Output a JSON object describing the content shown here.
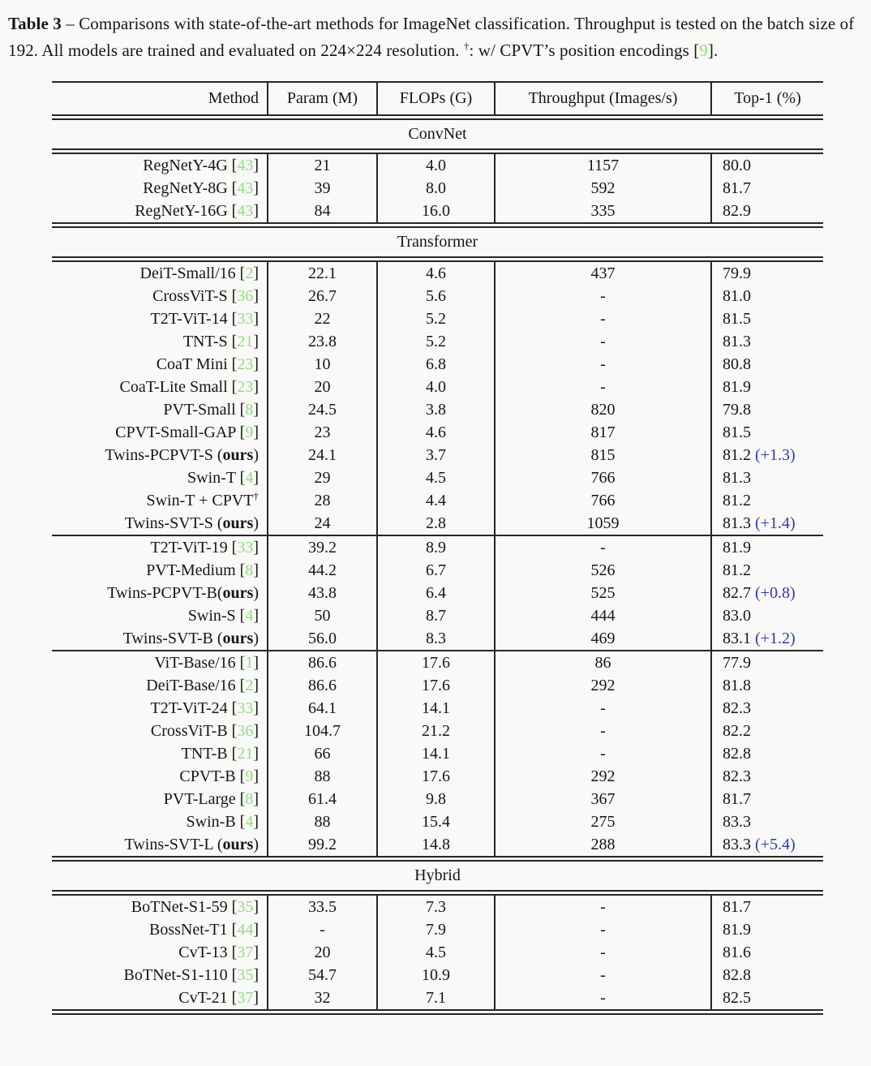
{
  "colors": {
    "background": "#f9f9f7",
    "ink": "#161616",
    "rule": "#262626",
    "citation_green": "#8fdf7d",
    "gain_blue": "#2a39c2"
  },
  "caption": {
    "label": "Table 3",
    "sep": " – ",
    "body1": "Comparisons with state-of-the-art methods for ImageNet classification. Throughput is tested on the batch size of 192. All models are trained and evaluated on 224×224 resolution. ",
    "dagger": "†",
    "body2": ": w/ CPVT’s position encodings [",
    "ref": "9",
    "body3": "]."
  },
  "table": {
    "columns": [
      "Method",
      "Param (M)",
      "FLOPs (G)",
      "Throughput (Images/s)",
      "Top-1 (%)"
    ],
    "sections": [
      {
        "label": "ConvNet",
        "groups": [
          [
            {
              "name": "RegNetY-4G",
              "ref": "43",
              "param": "21",
              "flops": "4.0",
              "tput": "1157",
              "top1": "80.0"
            },
            {
              "name": "RegNetY-8G",
              "ref": "43",
              "param": "39",
              "flops": "8.0",
              "tput": "592",
              "top1": "81.7"
            },
            {
              "name": "RegNetY-16G",
              "ref": "43",
              "param": "84",
              "flops": "16.0",
              "tput": "335",
              "top1": "82.9"
            }
          ]
        ]
      },
      {
        "label": "Transformer",
        "groups": [
          [
            {
              "name": "DeiT-Small/16",
              "ref": "2",
              "param": "22.1",
              "flops": "4.6",
              "tput": "437",
              "top1": "79.9"
            },
            {
              "name": "CrossViT-S",
              "ref": "36",
              "param": "26.7",
              "flops": "5.6",
              "tput": "-",
              "top1": "81.0"
            },
            {
              "name": "T2T-ViT-14",
              "ref": "33",
              "param": "22",
              "flops": "5.2",
              "tput": "-",
              "top1": "81.5"
            },
            {
              "name": "TNT-S",
              "ref": "21",
              "param": "23.8",
              "flops": "5.2",
              "tput": "-",
              "top1": "81.3"
            },
            {
              "name": "CoaT Mini",
              "ref": "23",
              "param": "10",
              "flops": "6.8",
              "tput": "-",
              "top1": "80.8"
            },
            {
              "name": "CoaT-Lite Small",
              "ref": "23",
              "param": "20",
              "flops": "4.0",
              "tput": "-",
              "top1": "81.9"
            },
            {
              "name": "PVT-Small",
              "ref": "8",
              "param": "24.5",
              "flops": "3.8",
              "tput": "820",
              "top1": "79.8"
            },
            {
              "name": "CPVT-Small-GAP",
              "ref": "9",
              "param": "23",
              "flops": "4.6",
              "tput": "817",
              "top1": "81.5"
            },
            {
              "name": "Twins-PCPVT-S",
              "ours": true,
              "param": "24.1",
              "flops": "3.7",
              "tput": "815",
              "top1": "81.2",
              "gain": "(+1.3)"
            },
            {
              "name": "Swin-T",
              "ref": "4",
              "param": "29",
              "flops": "4.5",
              "tput": "766",
              "top1": "81.3"
            },
            {
              "name": "Swin-T + CPVT",
              "dagger": true,
              "param": "28",
              "flops": "4.4",
              "tput": "766",
              "top1": "81.2"
            },
            {
              "name": "Twins-SVT-S",
              "ours": true,
              "param": "24",
              "flops": "2.8",
              "tput": "1059",
              "top1": "81.3",
              "gain": "(+1.4)"
            }
          ],
          [
            {
              "name": "T2T-ViT-19",
              "ref": "33",
              "param": "39.2",
              "flops": "8.9",
              "tput": "-",
              "top1": "81.9"
            },
            {
              "name": "PVT-Medium",
              "ref": "8",
              "param": "44.2",
              "flops": "6.7",
              "tput": "526",
              "top1": "81.2"
            },
            {
              "name": "Twins-PCPVT-B",
              "ours": true,
              "nospace": true,
              "param": "43.8",
              "flops": "6.4",
              "tput": "525",
              "top1": "82.7",
              "gain": "(+0.8)"
            },
            {
              "name": "Swin-S",
              "ref": "4",
              "param": "50",
              "flops": "8.7",
              "tput": "444",
              "top1": "83.0"
            },
            {
              "name": "Twins-SVT-B",
              "ours": true,
              "param": "56.0",
              "flops": "8.3",
              "tput": "469",
              "top1": "83.1",
              "gain": "(+1.2)"
            }
          ],
          [
            {
              "name": "ViT-Base/16",
              "ref": "1",
              "param": "86.6",
              "flops": "17.6",
              "tput": "86",
              "top1": "77.9"
            },
            {
              "name": "DeiT-Base/16",
              "ref": "2",
              "param": "86.6",
              "flops": "17.6",
              "tput": "292",
              "top1": "81.8"
            },
            {
              "name": "T2T-ViT-24",
              "ref": "33",
              "param": "64.1",
              "flops": "14.1",
              "tput": "-",
              "top1": "82.3"
            },
            {
              "name": "CrossViT-B",
              "ref": "36",
              "param": "104.7",
              "flops": "21.2",
              "tput": "-",
              "top1": "82.2"
            },
            {
              "name": "TNT-B",
              "ref": "21",
              "param": "66",
              "flops": "14.1",
              "tput": "-",
              "top1": "82.8"
            },
            {
              "name": "CPVT-B",
              "ref": "9",
              "param": "88",
              "flops": "17.6",
              "tput": "292",
              "top1": "82.3"
            },
            {
              "name": "PVT-Large",
              "ref": "8",
              "param": "61.4",
              "flops": "9.8",
              "tput": "367",
              "top1": "81.7"
            },
            {
              "name": "Swin-B",
              "ref": "4",
              "param": "88",
              "flops": "15.4",
              "tput": "275",
              "top1": "83.3"
            },
            {
              "name": "Twins-SVT-L",
              "ours": true,
              "param": "99.2",
              "flops": "14.8",
              "tput": "288",
              "top1": "83.3",
              "gain": "(+5.4)"
            }
          ]
        ]
      },
      {
        "label": "Hybrid",
        "groups": [
          [
            {
              "name": "BoTNet-S1-59",
              "ref": "35",
              "param": "33.5",
              "flops": "7.3",
              "tput": "-",
              "top1": "81.7"
            },
            {
              "name": "BossNet-T1",
              "ref": "44",
              "param": "-",
              "flops": "7.9",
              "tput": "-",
              "top1": "81.9"
            },
            {
              "name": "CvT-13",
              "ref": "37",
              "param": "20",
              "flops": "4.5",
              "tput": "-",
              "top1": "81.6"
            },
            {
              "name": "BoTNet-S1-110",
              "ref": "35",
              "param": "54.7",
              "flops": "10.9",
              "tput": "-",
              "top1": "82.8"
            },
            {
              "name": "CvT-21",
              "ref": "37",
              "param": "32",
              "flops": "7.1",
              "tput": "-",
              "top1": "82.5"
            }
          ]
        ]
      }
    ],
    "ours_label": "ours",
    "dagger_mark": "†"
  }
}
